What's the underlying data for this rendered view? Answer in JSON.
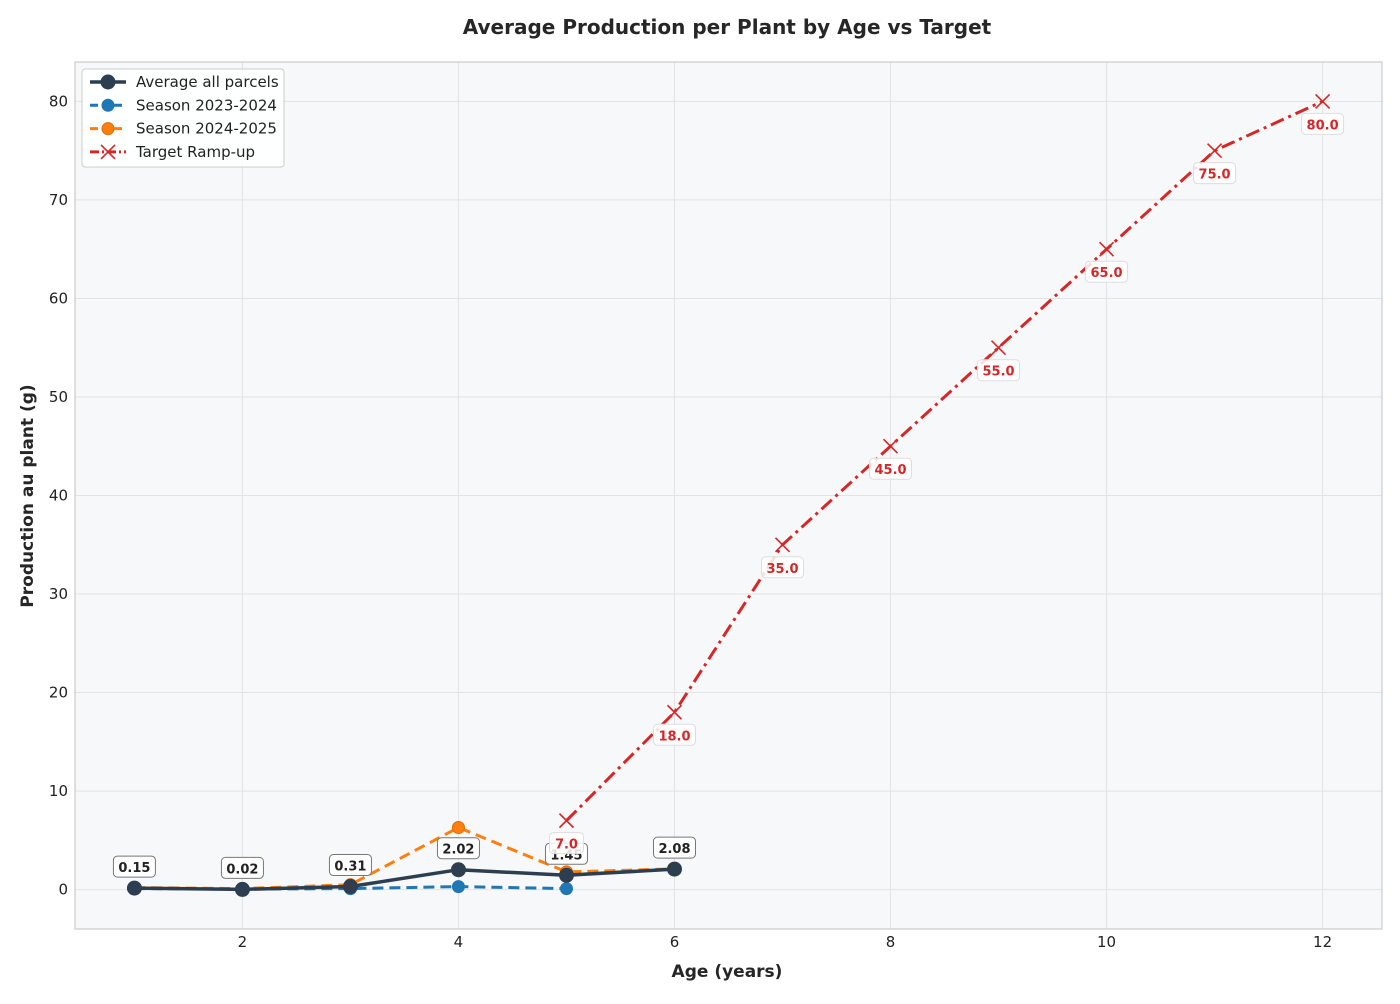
{
  "chart_data": {
    "type": "line",
    "title": "Average Production per Plant by Age vs Target",
    "xlabel": "Age (years)",
    "ylabel": "Production au plant (g)",
    "xlim": [
      0.45,
      12.55
    ],
    "ylim": [
      -4,
      84
    ],
    "xticks": [
      2,
      4,
      6,
      8,
      10,
      12
    ],
    "yticks": [
      0,
      10,
      20,
      30,
      40,
      50,
      60,
      70,
      80
    ],
    "grid": true,
    "legend_position": "top-left",
    "background_color": "#f6f8fa",
    "series": [
      {
        "name": "Average all parcels",
        "color": "#2c3e50",
        "line_style": "solid",
        "marker": "circle",
        "x": [
          1,
          2,
          3,
          4,
          5,
          6
        ],
        "y": [
          0.15,
          0.02,
          0.31,
          2.02,
          1.45,
          2.08
        ],
        "labels": [
          "0.15",
          "0.02",
          "0.31",
          "2.02",
          "1.45",
          "2.08"
        ]
      },
      {
        "name": "Season 2023-2024",
        "color": "#1f77b4",
        "line_style": "dashed",
        "marker": "circle",
        "x": [
          1,
          2,
          3,
          4,
          5
        ],
        "y": [
          0.1,
          0.05,
          0.1,
          0.3,
          0.1
        ]
      },
      {
        "name": "Season 2024-2025",
        "color": "#ff7f0e",
        "line_style": "dashed",
        "marker": "circle",
        "x": [
          1,
          2,
          3,
          4,
          5,
          6
        ],
        "y": [
          0.2,
          0.1,
          0.5,
          6.3,
          1.8,
          2.1
        ]
      },
      {
        "name": "Target Ramp-up",
        "color": "#d62728",
        "line_style": "dashdot",
        "marker": "x",
        "x": [
          5,
          6,
          7,
          8,
          9,
          10,
          11,
          12
        ],
        "y": [
          7,
          18,
          35,
          45,
          55,
          65,
          75,
          80
        ],
        "labels": [
          "7.0",
          "18.0",
          "35.0",
          "45.0",
          "55.0",
          "65.0",
          "75.0",
          "80.0"
        ]
      }
    ]
  }
}
